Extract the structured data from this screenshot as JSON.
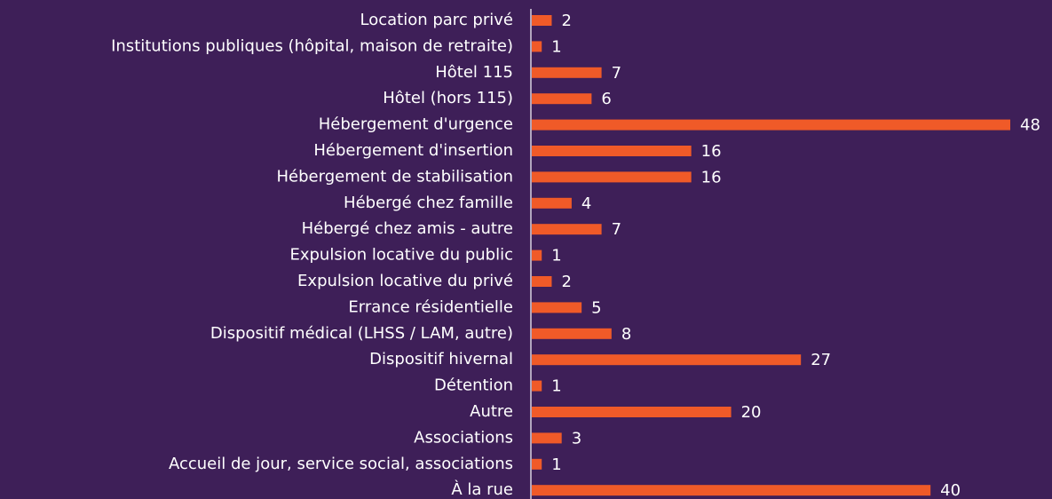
{
  "chart_data": {
    "type": "barh",
    "categories": [
      "Location parc privé",
      "Institutions publiques (hôpital, maison de retraite)",
      "Hôtel 115",
      "Hôtel (hors 115)",
      "Hébergement d'urgence",
      "Hébergement d'insertion",
      "Hébergement de stabilisation",
      "Hébergé chez famille",
      "Hébergé chez amis - autre",
      "Expulsion locative du public",
      "Expulsion locative du privé",
      "Errance résidentielle",
      "Dispositif médical (LHSS / LAM, autre)",
      "Dispositif hivernal",
      "Détention",
      "Autre",
      "Associations",
      "Accueil de jour, service social, associations",
      "À la rue"
    ],
    "values": [
      2,
      1,
      7,
      6,
      48,
      16,
      16,
      4,
      7,
      1,
      2,
      5,
      8,
      27,
      1,
      20,
      3,
      1,
      40
    ],
    "color": "#f05a28",
    "xlim": [
      0,
      48
    ]
  }
}
